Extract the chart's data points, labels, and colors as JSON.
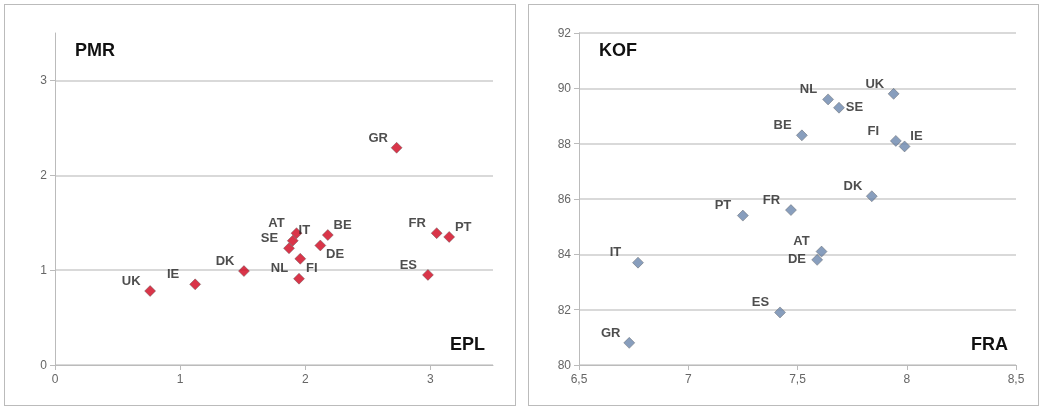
{
  "chart_data": [
    {
      "type": "scatter",
      "xlabel": "EPL",
      "ylabel": "PMR",
      "marker": "diamond",
      "grid": "y",
      "xlim": [
        0,
        3.5
      ],
      "ylim": [
        0,
        3.5
      ],
      "xticks": [
        0,
        1,
        2,
        3
      ],
      "yticks": [
        0,
        1,
        2,
        3
      ],
      "series": [
        {
          "color": "#d0021b",
          "x": [
            0.76,
            1.12,
            1.51,
            1.87,
            1.9,
            1.93,
            1.96,
            1.95,
            2.12,
            2.18,
            2.73,
            2.98,
            3.05,
            3.15
          ],
          "values": [
            0.78,
            0.85,
            0.99,
            1.23,
            1.31,
            1.39,
            1.12,
            0.91,
            1.26,
            1.37,
            2.29,
            0.95,
            1.39,
            1.35
          ],
          "value_labels": [
            "UK",
            "IE",
            "DK",
            "SE",
            "IT",
            "AT",
            "FI",
            "NL",
            "DE",
            "BE",
            "GR",
            "ES",
            "FR",
            "PT"
          ]
        }
      ]
    },
    {
      "type": "scatter",
      "xlabel": "FRA",
      "ylabel": "KOF",
      "marker": "diamond",
      "grid": "y",
      "xlim": [
        6.5,
        8.5
      ],
      "ylim": [
        80,
        92
      ],
      "xticks": [
        {
          "value": 6.5,
          "label": "6,5"
        },
        7,
        {
          "value": 7.5,
          "label": "7,5"
        },
        8,
        {
          "value": 8.5,
          "label": "8,5"
        }
      ],
      "yticks": [
        80,
        82,
        84,
        86,
        88,
        90,
        92
      ],
      "series": [
        {
          "color": "#6a86ad",
          "x": [
            7.94,
            7.64,
            7.69,
            7.52,
            7.95,
            7.99,
            7.84,
            7.47,
            7.25,
            7.61,
            7.59,
            6.77,
            7.42,
            6.73
          ],
          "values": [
            89.8,
            89.6,
            89.3,
            88.3,
            88.1,
            87.9,
            86.1,
            85.6,
            85.4,
            84.1,
            83.8,
            83.7,
            81.9,
            80.8
          ],
          "value_labels": [
            "UK",
            "NL",
            "SE",
            "BE",
            "FI",
            "IE",
            "DK",
            "FR",
            "PT",
            "AT",
            "DE",
            "IT",
            "ES",
            "GR"
          ]
        }
      ]
    }
  ]
}
